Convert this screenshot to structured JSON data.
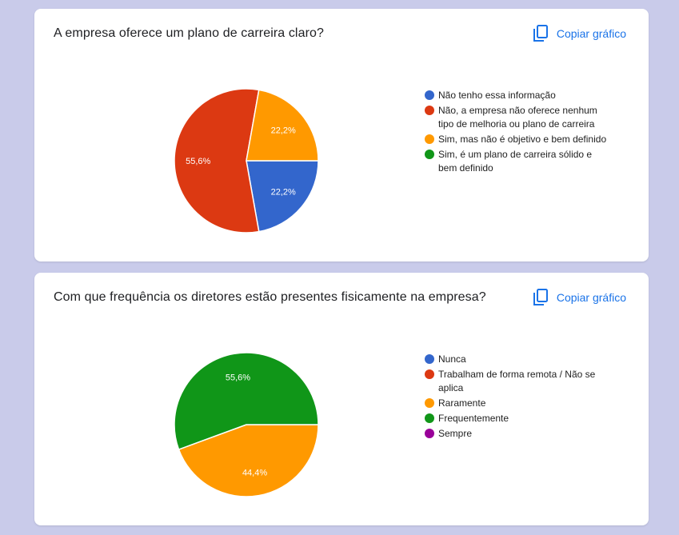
{
  "copy_label": "Copiar gráfico",
  "colors": {
    "blue": "#3366cc",
    "red": "#dc3912",
    "orange": "#ff9900",
    "green": "#109618",
    "purple": "#990099"
  },
  "chart_data": [
    {
      "type": "pie",
      "title": "A empresa oferece um plano de carreira claro?",
      "legend_position": "right",
      "slices": [
        {
          "label": "Não tenho essa informação",
          "value": 22.2,
          "display": "22,2%",
          "color": "#3366cc"
        },
        {
          "label": "Não, a empresa não oferece nenhum tipo de melhoria ou plano de carreira",
          "value": 55.6,
          "display": "55,6%",
          "color": "#dc3912"
        },
        {
          "label": "Sim, mas não é objetivo e bem definido",
          "value": 22.2,
          "display": "22,2%",
          "color": "#ff9900"
        },
        {
          "label": "Sim, é um plano de carreira sólido e bem definido",
          "value": 0,
          "display": "",
          "color": "#109618"
        }
      ]
    },
    {
      "type": "pie",
      "title": "Com que frequência os diretores estão presentes fisicamente na empresa?",
      "legend_position": "right",
      "slices": [
        {
          "label": "Nunca",
          "value": 0,
          "display": "",
          "color": "#3366cc"
        },
        {
          "label": "Trabalham de forma remota / Não se aplica",
          "value": 0,
          "display": "",
          "color": "#dc3912"
        },
        {
          "label": "Raramente",
          "value": 44.4,
          "display": "44,4%",
          "color": "#ff9900"
        },
        {
          "label": "Frequentemente",
          "value": 55.6,
          "display": "55,6%",
          "color": "#109618"
        },
        {
          "label": "Sempre",
          "value": 0,
          "display": "",
          "color": "#990099"
        }
      ]
    }
  ]
}
